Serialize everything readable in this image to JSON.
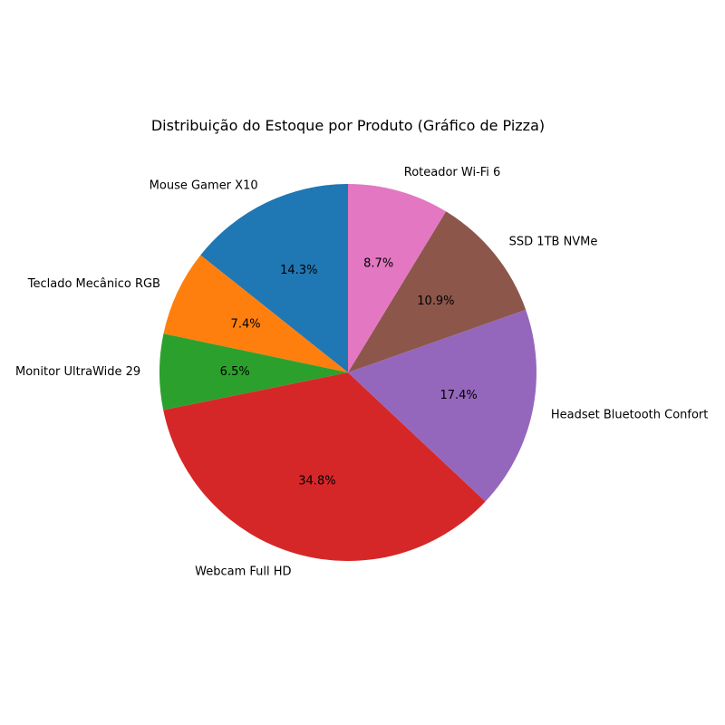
{
  "chart_data": {
    "type": "pie",
    "title": "Distribuição do Estoque por Produto (Gráfico de Pizza)",
    "categories": [
      "Mouse Gamer X10",
      "Teclado Mecânico RGB",
      "Monitor UltraWide 29",
      "Webcam Full HD",
      "Headset Bluetooth Confort",
      "SSD 1TB NVMe",
      "Roteador Wi-Fi 6"
    ],
    "values": [
      14.3,
      7.4,
      6.5,
      34.8,
      17.4,
      10.9,
      8.7
    ],
    "value_labels": [
      "14.3%",
      "7.4%",
      "6.5%",
      "34.8%",
      "17.4%",
      "10.9%",
      "8.7%"
    ],
    "colors": [
      "#1f77b4",
      "#ff7f0e",
      "#2ca02c",
      "#d62728",
      "#9467bd",
      "#8c564b",
      "#e377c2"
    ],
    "start_angle_deg": 90,
    "direction": "counterclockwise"
  }
}
